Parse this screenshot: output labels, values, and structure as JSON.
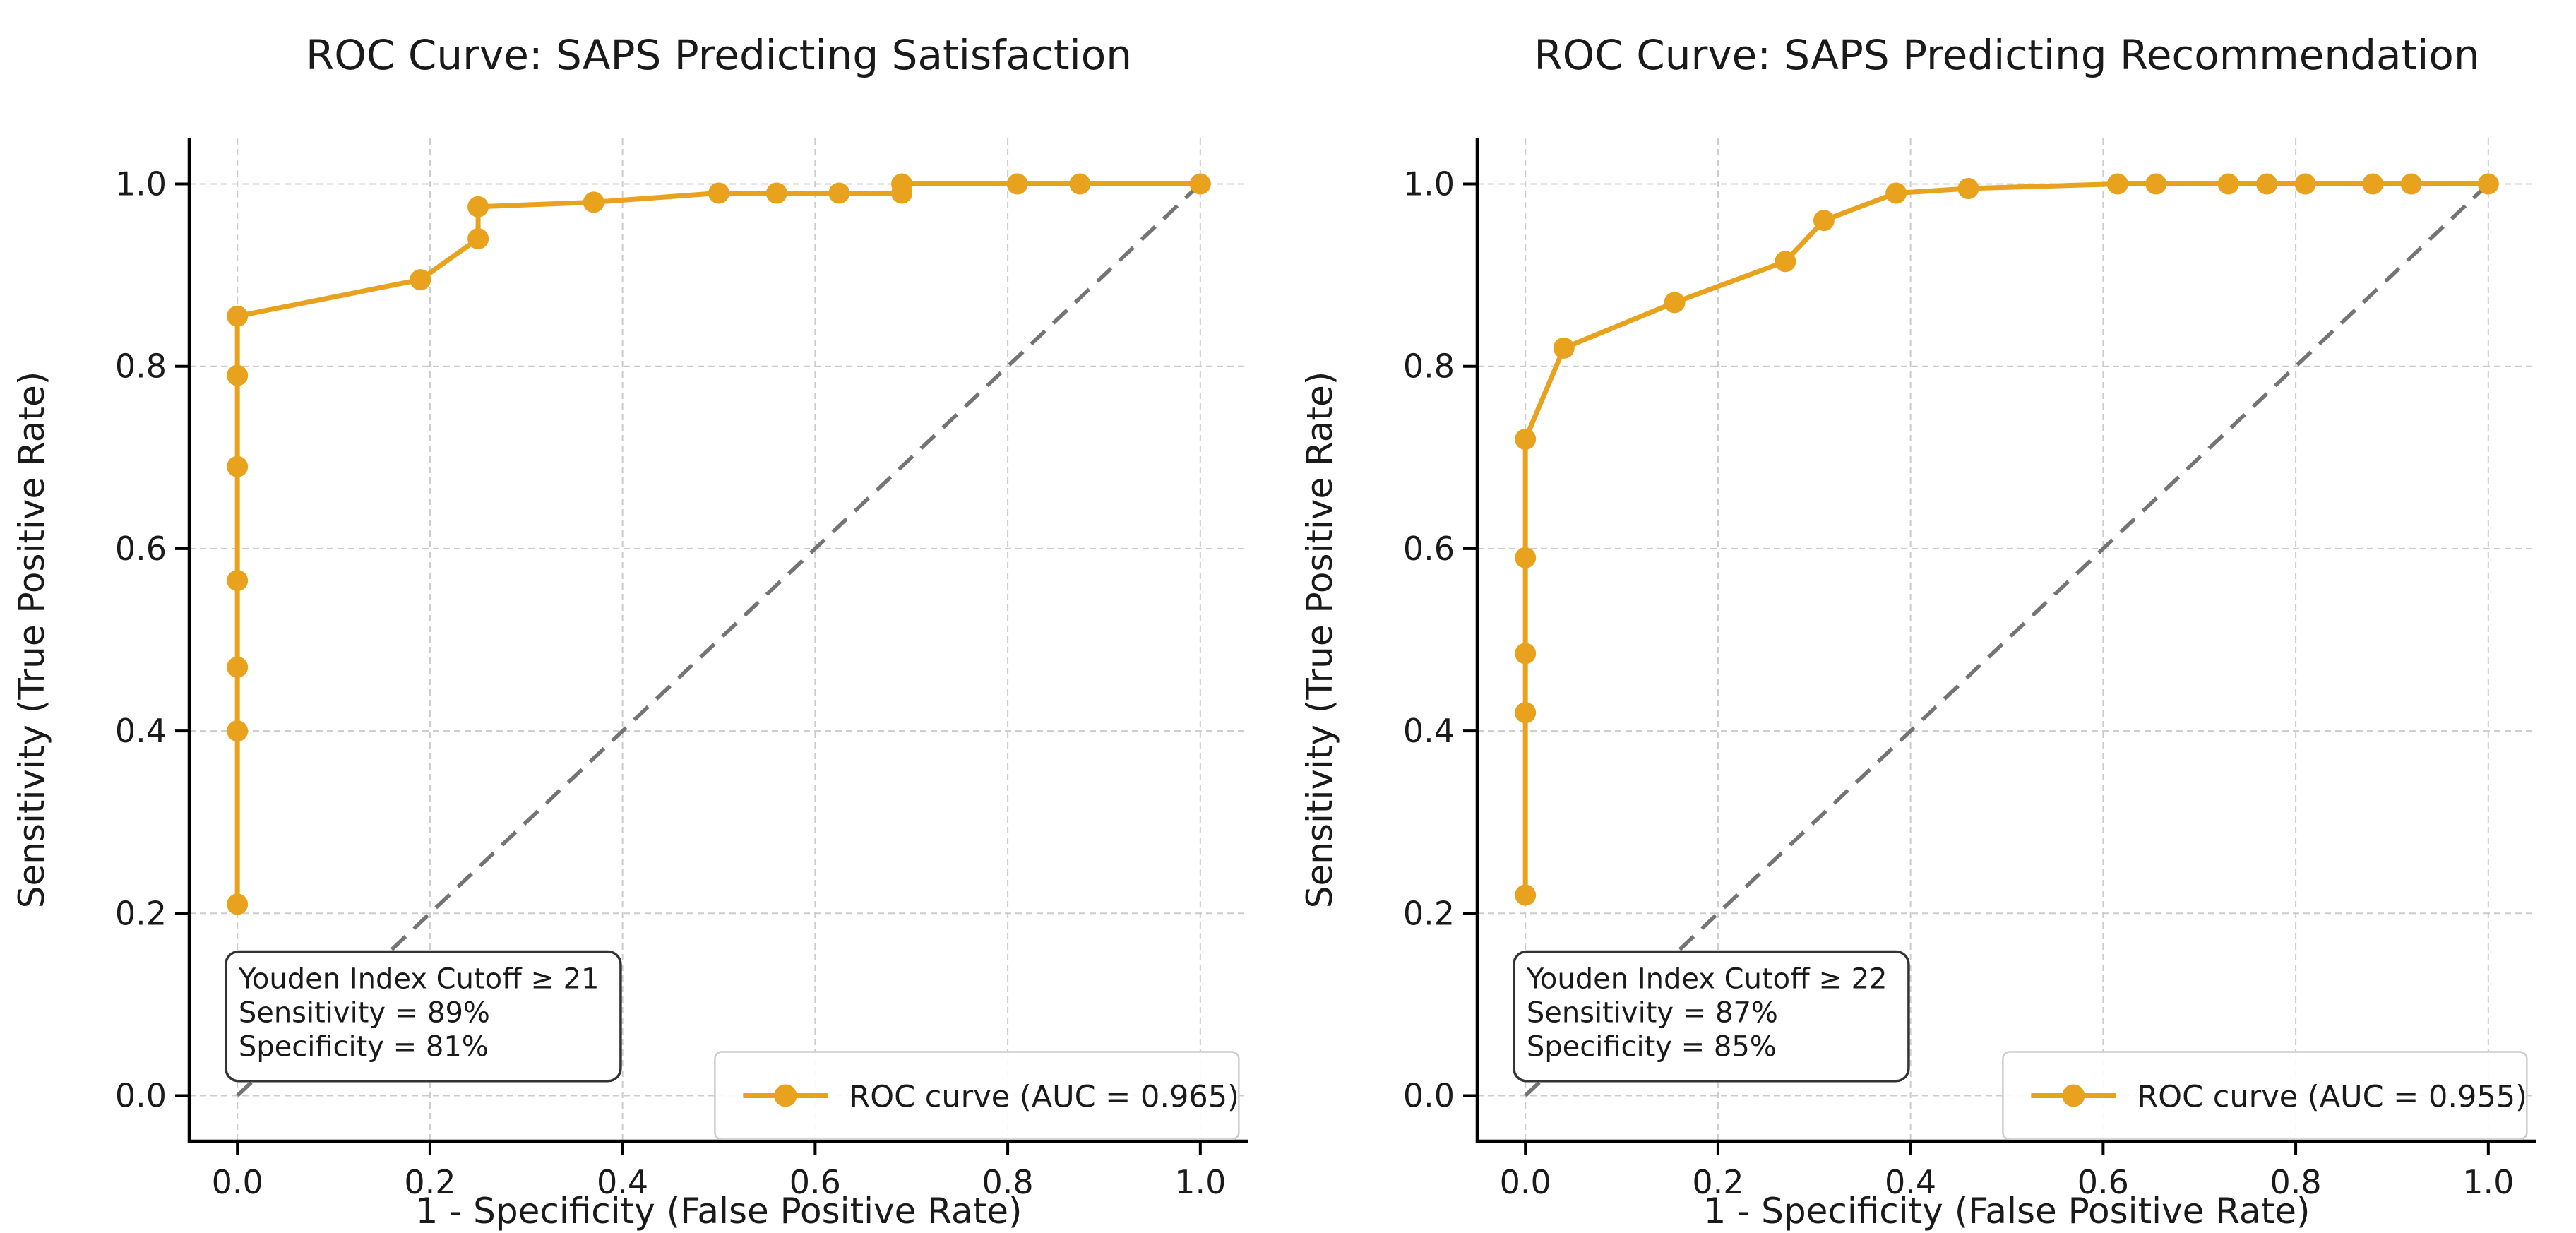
{
  "figure": {
    "background": "#ffffff",
    "shared": {
      "xlabel": "1 - Specificity (False Positive Rate)",
      "ylabel": "Sensitivity (True Positive Rate)"
    }
  },
  "colors": {
    "roc_curve": "#E8A21D",
    "chance_diagonal": "#747474",
    "grid": "#cccccc",
    "spine": "#000000",
    "text": "#1a1a1a",
    "annotation_border": "#333333",
    "annotation_fill": "#ffffff",
    "legend_border": "#cccccc",
    "legend_fill": "#ffffff"
  },
  "chart_data": [
    {
      "type": "line",
      "title": "ROC Curve: SAPS Predicting Satisfaction",
      "xlabel": "1 - Specificity (False Positive Rate)",
      "ylabel": "Sensitivity (True Positive Rate)",
      "xlim": [
        -0.05,
        1.05
      ],
      "ylim": [
        -0.05,
        1.05
      ],
      "xticks": [
        "0.0",
        "0.2",
        "0.4",
        "0.6",
        "0.8",
        "1.0"
      ],
      "yticks": [
        "0.0",
        "0.2",
        "0.4",
        "0.6",
        "0.8",
        "1.0"
      ],
      "grid": true,
      "legend": {
        "label": "ROC curve (AUC = 0.965)",
        "position": "lower right"
      },
      "auc": 0.965,
      "reference_line": {
        "name": "chance-diagonal",
        "from": [
          0,
          0
        ],
        "to": [
          1,
          1
        ],
        "style": "dashed"
      },
      "series": [
        {
          "name": "ROC curve",
          "marker": "circle",
          "points": [
            [
              0.0,
              0.21
            ],
            [
              0.0,
              0.4
            ],
            [
              0.0,
              0.47
            ],
            [
              0.0,
              0.565
            ],
            [
              0.0,
              0.69
            ],
            [
              0.0,
              0.79
            ],
            [
              0.0,
              0.855
            ],
            [
              0.19,
              0.895
            ],
            [
              0.25,
              0.94
            ],
            [
              0.25,
              0.975
            ],
            [
              0.37,
              0.98
            ],
            [
              0.5,
              0.99
            ],
            [
              0.56,
              0.99
            ],
            [
              0.625,
              0.99
            ],
            [
              0.69,
              0.99
            ],
            [
              0.69,
              1.0
            ],
            [
              0.81,
              1.0
            ],
            [
              0.875,
              1.0
            ],
            [
              1.0,
              1.0
            ]
          ]
        }
      ],
      "annotation": {
        "lines": [
          "Youden Index Cutoff ≥ 21",
          "Sensitivity = 89%",
          "Specificity = 81%"
        ],
        "box_data_coords": [
          -0.012,
          0.016,
          0.398,
          0.158
        ]
      }
    },
    {
      "type": "line",
      "title": "ROC Curve: SAPS Predicting Recommendation",
      "xlabel": "1 - Specificity (False Positive Rate)",
      "ylabel": "Sensitivity (True Positive Rate)",
      "xlim": [
        -0.05,
        1.05
      ],
      "ylim": [
        -0.05,
        1.05
      ],
      "xticks": [
        "0.0",
        "0.2",
        "0.4",
        "0.6",
        "0.8",
        "1.0"
      ],
      "yticks": [
        "0.0",
        "0.2",
        "0.4",
        "0.6",
        "0.8",
        "1.0"
      ],
      "grid": true,
      "legend": {
        "label": "ROC curve (AUC = 0.955)",
        "position": "lower right"
      },
      "auc": 0.955,
      "reference_line": {
        "name": "chance-diagonal",
        "from": [
          0,
          0
        ],
        "to": [
          1,
          1
        ],
        "style": "dashed"
      },
      "series": [
        {
          "name": "ROC curve",
          "marker": "circle",
          "points": [
            [
              0.0,
              0.22
            ],
            [
              0.0,
              0.42
            ],
            [
              0.0,
              0.485
            ],
            [
              0.0,
              0.59
            ],
            [
              0.0,
              0.72
            ],
            [
              0.04,
              0.82
            ],
            [
              0.155,
              0.87
            ],
            [
              0.27,
              0.915
            ],
            [
              0.31,
              0.96
            ],
            [
              0.385,
              0.99
            ],
            [
              0.46,
              0.995
            ],
            [
              0.615,
              1.0
            ],
            [
              0.655,
              1.0
            ],
            [
              0.73,
              1.0
            ],
            [
              0.77,
              1.0
            ],
            [
              0.81,
              1.0
            ],
            [
              0.88,
              1.0
            ],
            [
              0.92,
              1.0
            ],
            [
              1.0,
              1.0
            ]
          ]
        }
      ],
      "annotation": {
        "lines": [
          "Youden Index Cutoff ≥ 22",
          "Sensitivity = 87%",
          "Specificity = 85%"
        ],
        "box_data_coords": [
          -0.012,
          0.016,
          0.398,
          0.158
        ]
      }
    }
  ]
}
